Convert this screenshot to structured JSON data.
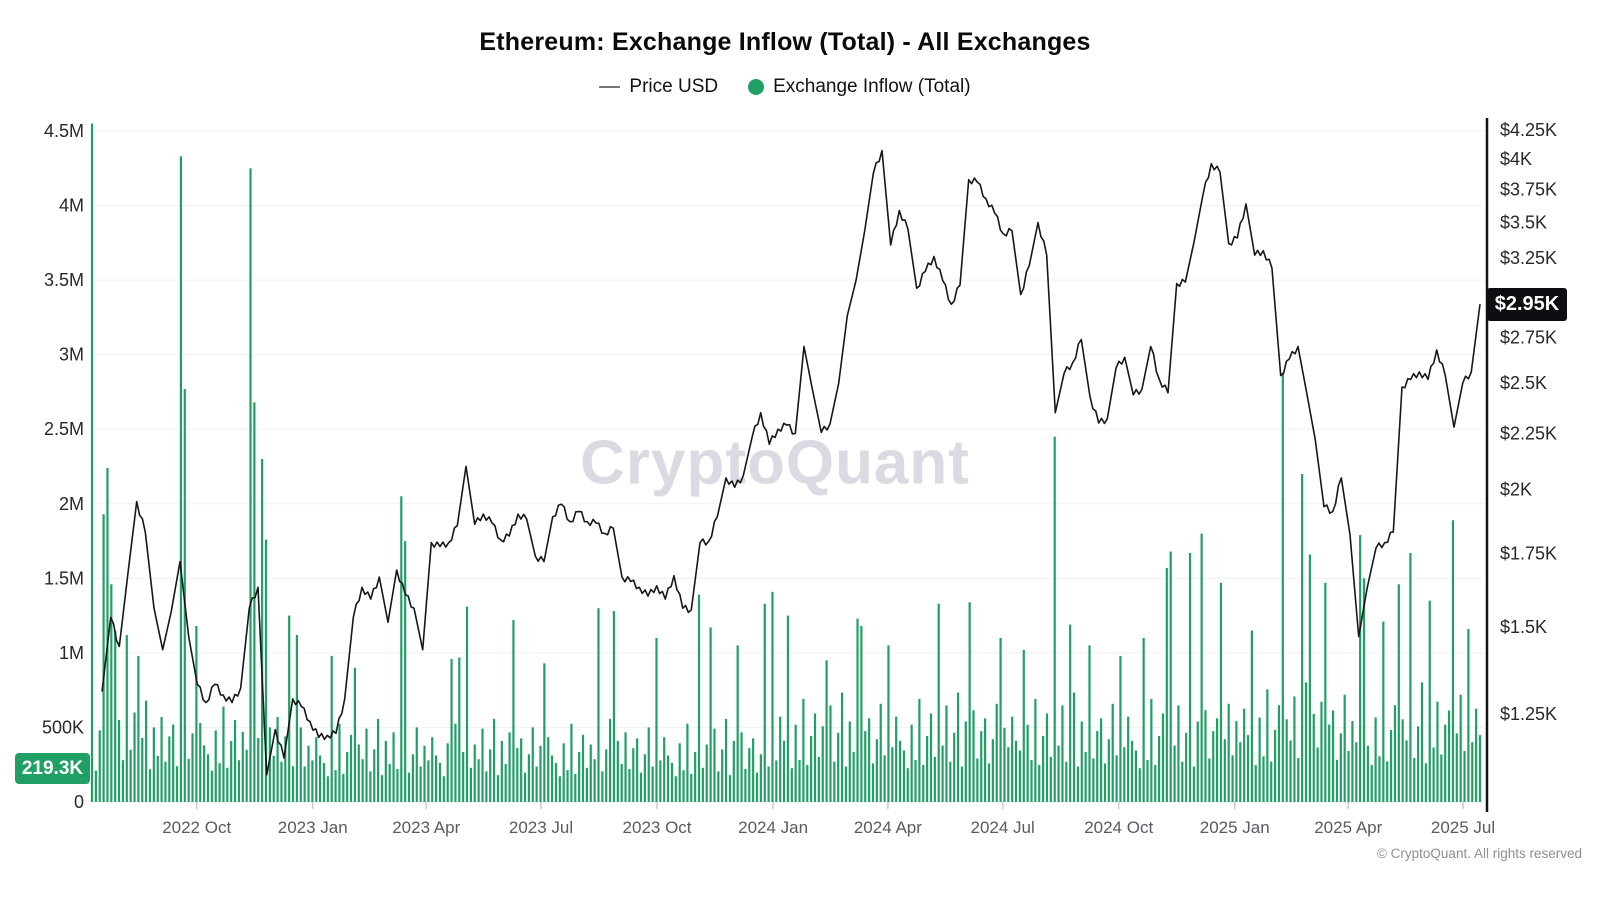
{
  "title": "Ethereum: Exchange Inflow (Total) - All Exchanges",
  "legend": {
    "price_label": "Price USD",
    "inflow_label": "Exchange Inflow (Total)"
  },
  "watermark": "CryptoQuant",
  "footer": "© CryptoQuant. All rights reserved",
  "badges": {
    "inflow_latest": "219.3K",
    "price_latest": "$2.95K"
  },
  "colors": {
    "green": "#21a065",
    "price_line": "#17171b",
    "grid": "#f1f1f4",
    "axis_spine": "#141418",
    "tick_mark": "#c9c9cf",
    "x_label": "#5a5a62",
    "y_label": "#27272d",
    "badge_price_bg": "#0e0e12",
    "badge_text": "#ffffff"
  },
  "chart_data": {
    "type": "bar+line",
    "title": "Ethereum: Exchange Inflow (Total) - All Exchanges",
    "x_axis": {
      "labels": [
        "2022 Oct",
        "2023 Jan",
        "2023 Apr",
        "2023 Jul",
        "2023 Oct",
        "2024 Jan",
        "2024 Apr",
        "2024 Jul",
        "2024 Oct",
        "2025 Jan",
        "2025 Apr",
        "2025 Jul"
      ],
      "start": "2022-07-10",
      "end": "2025-07-15"
    },
    "left_axis": {
      "series": "Exchange Inflow (Total)",
      "unit": "ETH",
      "scale": "linear",
      "range": [
        0,
        4500000
      ],
      "tick_labels": [
        "4.5M",
        "4M",
        "3.5M",
        "3M",
        "2.5M",
        "2M",
        "1.5M",
        "1M",
        "500K",
        "0"
      ],
      "latest_value_label": "219.3K",
      "latest_value": 219300
    },
    "right_axis": {
      "series": "Price USD",
      "unit": "USD",
      "scale": "log",
      "tick_values": [
        4250,
        4000,
        3750,
        3500,
        3250,
        2750,
        2500,
        2250,
        2000,
        1750,
        1500,
        1250
      ],
      "tick_labels": [
        "$4.25K",
        "$4K",
        "$3.75K",
        "$3.5K",
        "$3.25K",
        "$2.75K",
        "$2.5K",
        "$2.25K",
        "$2K",
        "$1.75K",
        "$1.5K",
        "$1.25K"
      ],
      "current_price": 2950,
      "current_price_label": "$2.95K"
    },
    "series": [
      {
        "name": "Price USD",
        "type": "line",
        "sampling": "weekly",
        "start": "2022-07-17",
        "values_usd": [
          1310,
          1530,
          1440,
          1680,
          1950,
          1830,
          1560,
          1430,
          1550,
          1720,
          1470,
          1330,
          1280,
          1330,
          1300,
          1280,
          1320,
          1560,
          1630,
          1100,
          1210,
          1140,
          1290,
          1270,
          1230,
          1190,
          1195,
          1200,
          1290,
          1530,
          1630,
          1590,
          1665,
          1515,
          1690,
          1605,
          1560,
          1430,
          1790,
          1775,
          1790,
          1855,
          2100,
          1860,
          1900,
          1865,
          1800,
          1815,
          1900,
          1880,
          1740,
          1720,
          1890,
          1940,
          1870,
          1910,
          1870,
          1865,
          1825,
          1845,
          1665,
          1650,
          1630,
          1600,
          1635,
          1590,
          1670,
          1560,
          1555,
          1790,
          1795,
          1890,
          2050,
          2010,
          2060,
          2230,
          2350,
          2200,
          2270,
          2290,
          2250,
          2700,
          2460,
          2255,
          2295,
          2500,
          2880,
          3100,
          3440,
          3880,
          4070,
          3340,
          3590,
          3450,
          3050,
          3160,
          3260,
          3100,
          2950,
          3070,
          3830,
          3810,
          3680,
          3570,
          3420,
          3440,
          3010,
          3200,
          3500,
          3270,
          2350,
          2550,
          2610,
          2740,
          2430,
          2300,
          2320,
          2580,
          2640,
          2440,
          2470,
          2700,
          2520,
          2450,
          3080,
          3090,
          3360,
          3700,
          3960,
          3890,
          3350,
          3390,
          3640,
          3270,
          3300,
          3180,
          2540,
          2630,
          2700,
          2450,
          2220,
          1930,
          1910,
          2050,
          1820,
          1470,
          1630,
          1770,
          1790,
          1830,
          2480,
          2520,
          2560,
          2520,
          2680,
          2540,
          2280,
          2500,
          2560,
          2950
        ]
      },
      {
        "name": "Exchange Inflow (Total)",
        "type": "bar",
        "sampling": "approx-3-day",
        "bar_count": 360,
        "baseline_cycle_k": [
          320,
          210,
          480,
          260,
          640,
          230,
          410,
          550,
          280,
          470,
          350,
          600,
          250,
          430,
          680,
          220,
          500,
          310,
          570,
          270,
          440,
          520,
          240,
          390,
          610,
          290,
          460,
          340,
          530,
          380
        ],
        "era_scale": [
          [
            0,
            1.0
          ],
          [
            54,
            0.82
          ],
          [
            178,
            1.08
          ],
          [
            296,
            1.18
          ]
        ],
        "spikes_k": {
          "0": 4550,
          "3": 1930,
          "4": 2240,
          "5": 1460,
          "6": 1150,
          "9": 1120,
          "12": 980,
          "23": 4330,
          "24": 2770,
          "27": 1180,
          "41": 4250,
          "42": 2680,
          "44": 2300,
          "45": 1760,
          "51": 1250,
          "53": 1120,
          "62": 980,
          "68": 900,
          "80": 2050,
          "81": 1750,
          "93": 960,
          "95": 970,
          "97": 1310,
          "109": 1220,
          "117": 930,
          "131": 1300,
          "135": 1280,
          "146": 1100,
          "157": 1390,
          "160": 1170,
          "167": 1050,
          "174": 1330,
          "176": 1410,
          "180": 1250,
          "190": 950,
          "198": 1230,
          "199": 1180,
          "206": 1050,
          "219": 1330,
          "227": 1340,
          "235": 1100,
          "241": 1020,
          "249": 2450,
          "253": 1190,
          "258": 1050,
          "266": 980,
          "272": 1100,
          "278": 1570,
          "279": 1680,
          "284": 1670,
          "287": 1800,
          "292": 1470,
          "300": 1150,
          "308": 2880,
          "313": 2200,
          "315": 1660,
          "319": 1470,
          "328": 1790,
          "329": 1500,
          "334": 1210,
          "338": 1460,
          "341": 1670,
          "346": 1350,
          "352": 1890,
          "356": 1160
        }
      }
    ],
    "grid": "horizontal-only",
    "legend_position": "top-center"
  }
}
